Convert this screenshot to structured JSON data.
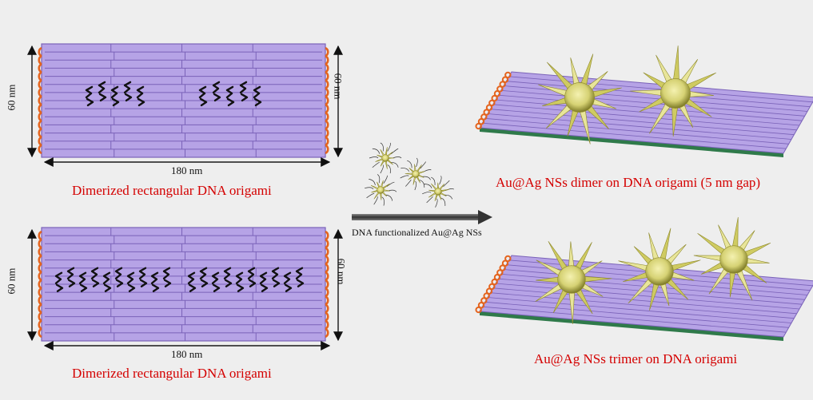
{
  "colors": {
    "background": "#eeeeee",
    "origami": "#b6a3e6",
    "origami_line": "#7a62b8",
    "loop": "#e4641e",
    "label_red": "#d40000",
    "particle": "#d9d57a",
    "particle_dark": "#8f8a2c",
    "base_green": "#2f7a4a"
  },
  "panels": {
    "top_left": {
      "height_label": "60 nm",
      "height_label_right": "60 nm",
      "width_label": "180 nm",
      "caption": "Dimerized rectangular  DNA origami"
    },
    "bottom_left": {
      "height_label": "60 nm",
      "height_label_right": "60 nm",
      "width_label": "180 nm",
      "caption": "Dimerized rectangular  DNA origami"
    }
  },
  "arrow": {
    "label": "DNA functionalized Au@Ag NSs"
  },
  "results": {
    "dimer_caption": "Au@Ag NSs dimer on DNA origami (5 nm gap)",
    "trimer_caption": "Au@Ag NSs trimer on DNA origami"
  },
  "icons": {
    "nanostar": "spiky-nanostar-icon",
    "capture_strand": "squiggle-strand-icon"
  }
}
